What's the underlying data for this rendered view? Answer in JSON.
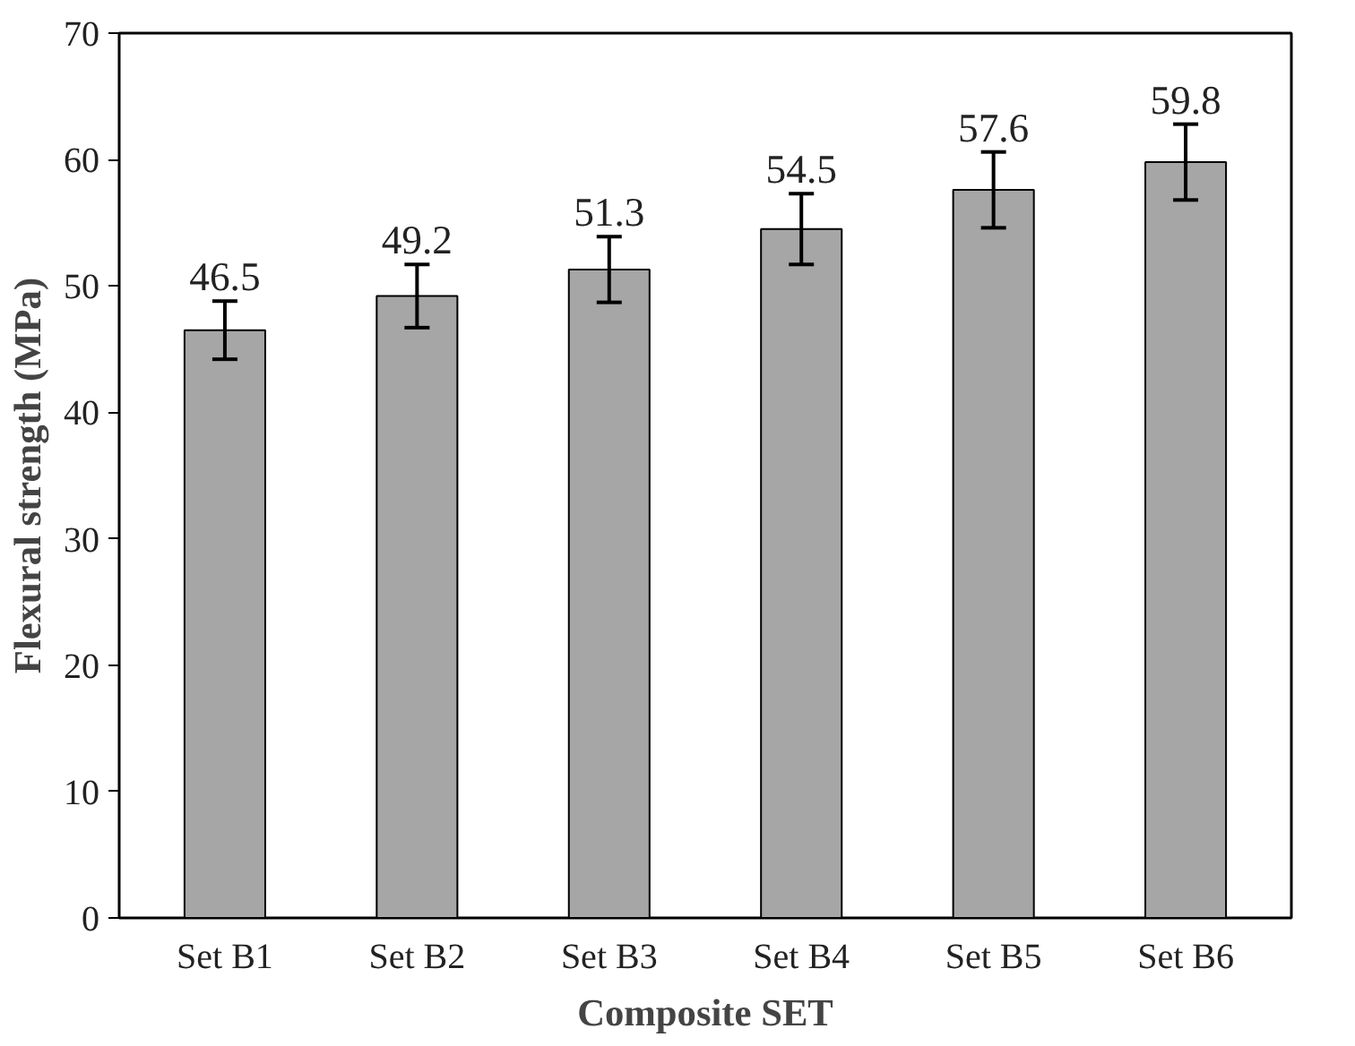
{
  "chart_data": {
    "type": "bar",
    "xlabel": "Composite SET",
    "ylabel": "Flexural strength (MPa)",
    "categories": [
      "Set B1",
      "Set B2",
      "Set B3",
      "Set B4",
      "Set B5",
      "Set B6"
    ],
    "values": [
      46.5,
      49.2,
      51.3,
      54.5,
      57.6,
      59.8
    ],
    "errors": [
      2.3,
      2.5,
      2.6,
      2.8,
      3.0,
      3.0
    ],
    "color": "#a6a6a6",
    "ylim": [
      0,
      70
    ],
    "yticks": [
      0,
      10,
      20,
      30,
      40,
      50,
      60,
      70
    ],
    "grid": false,
    "data_labels": true
  }
}
